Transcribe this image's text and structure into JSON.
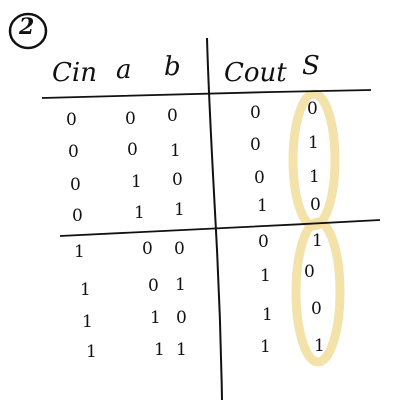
{
  "problem_number": "2",
  "headers": {
    "cin": "Cin",
    "a": "a",
    "b": "b",
    "cout": "Cout",
    "s": "S"
  },
  "rows": [
    {
      "cin": "0",
      "a": "0",
      "b": "0",
      "cout": "0",
      "s": "0"
    },
    {
      "cin": "0",
      "a": "0",
      "b": "1",
      "cout": "0",
      "s": "1"
    },
    {
      "cin": "0",
      "a": "1",
      "b": "0",
      "cout": "0",
      "s": "1"
    },
    {
      "cin": "0",
      "a": "1",
      "b": "1",
      "cout": "1",
      "s": "0"
    },
    {
      "cin": "1",
      "a": "0",
      "b": "0",
      "cout": "0",
      "s": "1"
    },
    {
      "cin": "1",
      "a": "0",
      "b": "1",
      "cout": "1",
      "s": "0"
    },
    {
      "cin": "1",
      "a": "1",
      "b": "0",
      "cout": "1",
      "s": "0"
    },
    {
      "cin": "1",
      "a": "1",
      "b": "1",
      "cout": "1",
      "s": "1"
    }
  ],
  "colors": {
    "ink": "#111111",
    "highlight": "#f3dfa2"
  }
}
